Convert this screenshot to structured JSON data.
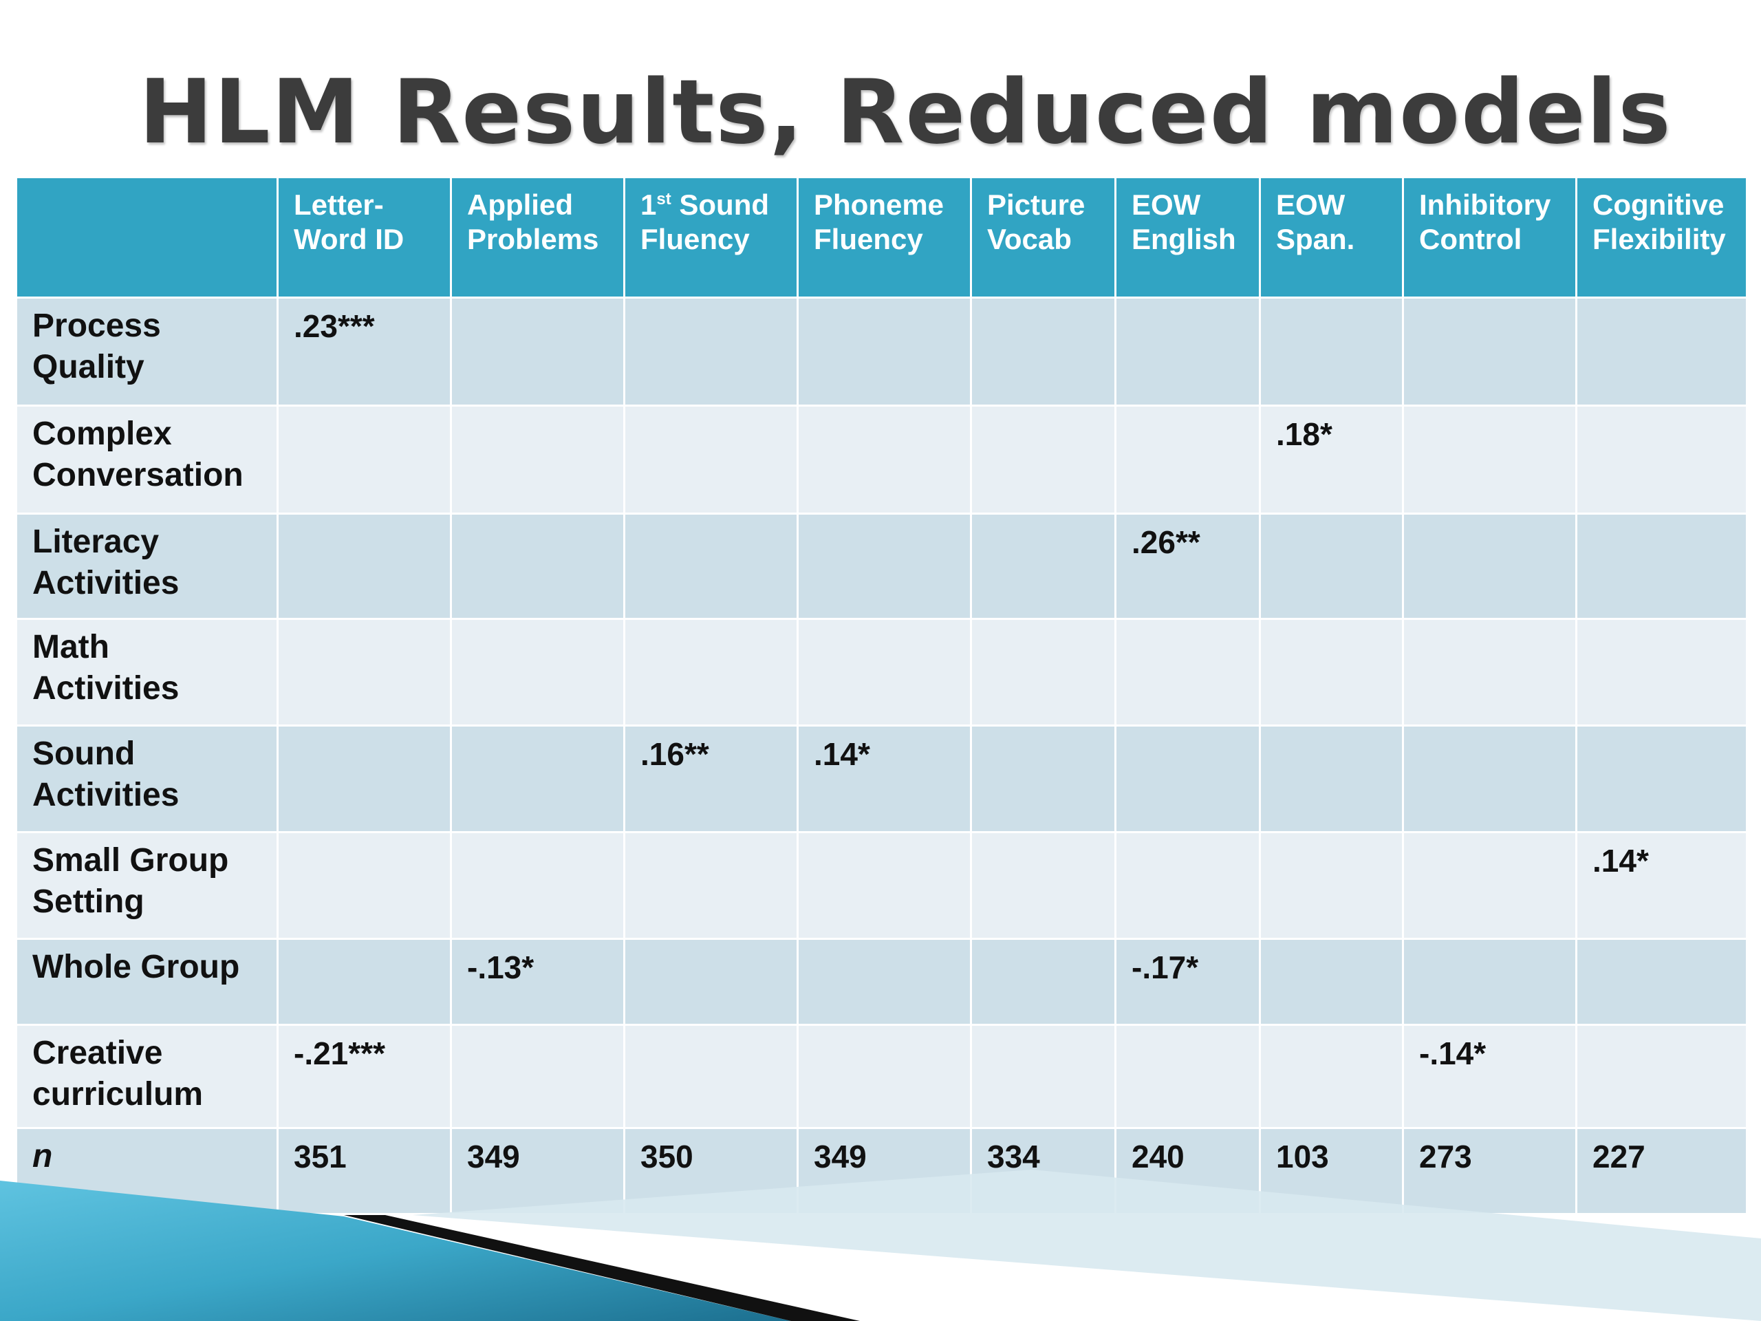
{
  "title": "HLM Results, Reduced models",
  "columns": [
    {
      "line1": "Letter-",
      "line2": "Word  ID"
    },
    {
      "line1": "Applied",
      "line2": "Problems"
    },
    {
      "line1": "1",
      "sup": "st",
      "line1_rest": " Sound",
      "line2": "Fluency"
    },
    {
      "line1": "Phoneme",
      "line2": "Fluency"
    },
    {
      "line1": "Picture",
      "line2": "Vocab"
    },
    {
      "line1": "EOW",
      "line2": "English"
    },
    {
      "line1": "EOW",
      "line2": "Span."
    },
    {
      "line1": "Inhibitory",
      "line2": "Control"
    },
    {
      "line1": "Cognitive",
      "line2": "Flexibility"
    }
  ],
  "rows": [
    {
      "line1": "Process",
      "line2": "Quality",
      "cells": [
        ".23***",
        "",
        "",
        "",
        "",
        "",
        "",
        "",
        ""
      ]
    },
    {
      "line1": "Complex",
      "line2": "Conversation",
      "cells": [
        "",
        "",
        "",
        "",
        "",
        "",
        ".18*",
        "",
        ""
      ]
    },
    {
      "line1": "Literacy",
      "line2": "Activities",
      "cells": [
        "",
        "",
        "",
        "",
        "",
        ".26**",
        "",
        "",
        ""
      ]
    },
    {
      "line1": "Math",
      "line2": "Activities",
      "cells": [
        "",
        "",
        "",
        "",
        "",
        "",
        "",
        "",
        ""
      ]
    },
    {
      "line1": "Sound",
      "line2": "Activities",
      "cells": [
        "",
        "",
        ".16**",
        ".14*",
        "",
        "",
        "",
        "",
        ""
      ]
    },
    {
      "line1": "Small Group",
      "line2": "Setting",
      "cells": [
        "",
        "",
        "",
        "",
        "",
        "",
        "",
        "",
        ".14*"
      ]
    },
    {
      "line1": "Whole Group",
      "line2": "",
      "cells": [
        "",
        "-.13*",
        "",
        "",
        "",
        "-.17*",
        "",
        "",
        ""
      ]
    },
    {
      "line1": "Creative",
      "line2": "curriculum",
      "cells": [
        "-.21***",
        "",
        "",
        "",
        "",
        "",
        "",
        "-.14*",
        ""
      ]
    },
    {
      "line1": "n",
      "line2": "",
      "cells": [
        "351",
        "349",
        "350",
        "349",
        "334",
        "240",
        "103",
        "273",
        "227"
      ]
    }
  ],
  "colors": {
    "header": "#31a4c3",
    "row_dark": "#cddfe8",
    "row_light": "#e8eff4",
    "title": "#3c3c3c"
  }
}
